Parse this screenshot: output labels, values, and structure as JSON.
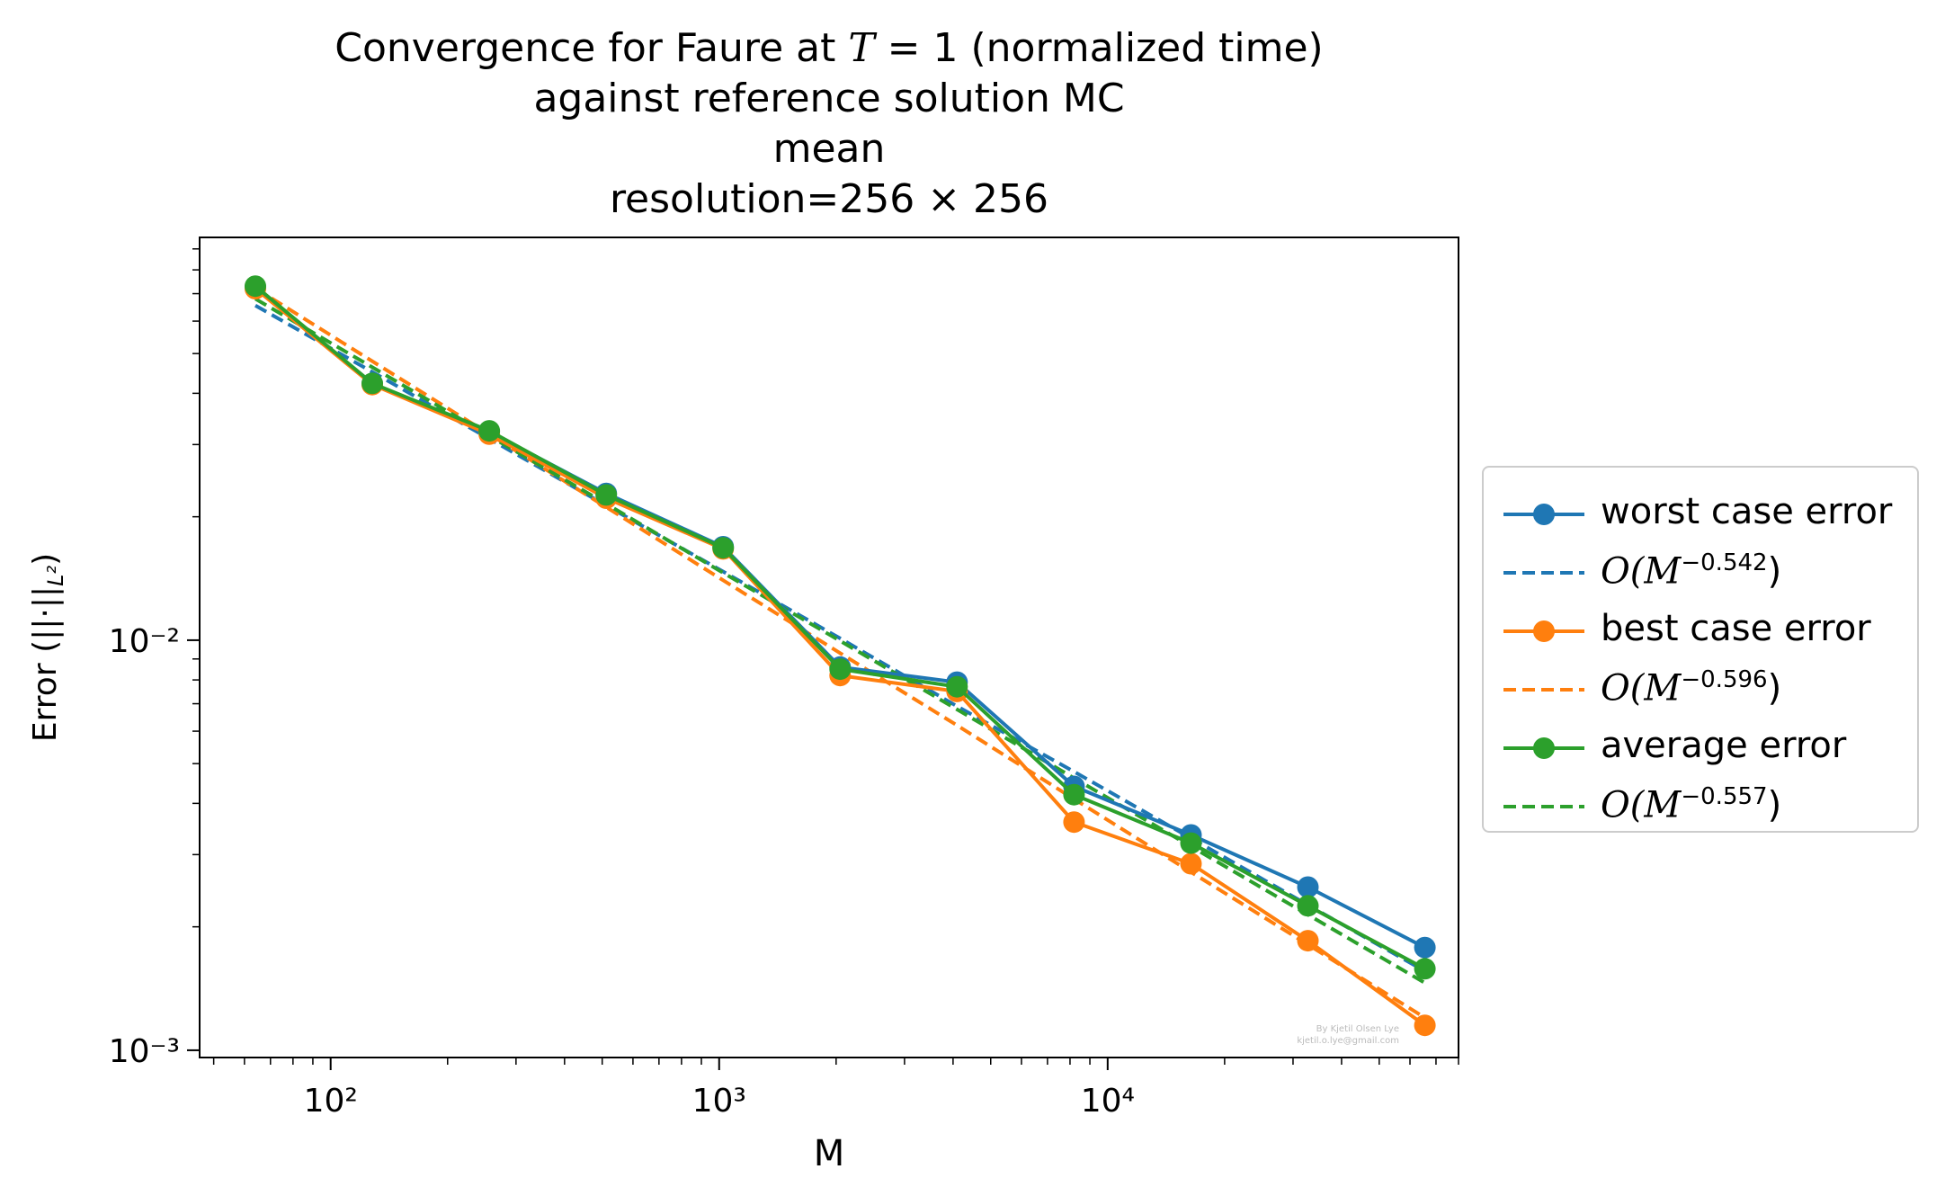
{
  "chart_data": {
    "type": "line",
    "title_lines": [
      "Convergence for Faure at T = 1 (normalized time)",
      "against reference solution MC",
      "mean",
      "resolution=256 × 256"
    ],
    "xlabel": "M",
    "ylabel": "Error (||·||L²)",
    "xscale": "log",
    "yscale": "log",
    "xlim": [
      46,
      80000
    ],
    "ylim": [
      0.00096,
      0.096
    ],
    "xticks": [
      100,
      1000,
      10000
    ],
    "xtick_labels": [
      "10²",
      "10³",
      "10⁴"
    ],
    "yticks": [
      0.001,
      0.01
    ],
    "ytick_labels": [
      "10⁻³",
      "10⁻²"
    ],
    "x": [
      64,
      128,
      256,
      512,
      1024,
      2048,
      4096,
      8192,
      16384,
      32768,
      65536
    ],
    "series": [
      {
        "name": "worst case error",
        "color": "#1f77b4",
        "style": "solid-marker",
        "values": [
          0.0725,
          0.0422,
          0.0322,
          0.0228,
          0.0169,
          0.0086,
          0.0079,
          0.0044,
          0.00335,
          0.0025,
          0.00178
        ]
      },
      {
        "name": "O(M^-0.542)",
        "color": "#1f77b4",
        "style": "dashed",
        "fit_exponent": -0.542,
        "values": [
          0.0655,
          0.0451,
          0.031,
          0.0213,
          0.0147,
          0.0101,
          0.0069,
          0.00478,
          0.00329,
          0.00226,
          0.00156
        ]
      },
      {
        "name": "best case error",
        "color": "#ff7f0e",
        "style": "solid-marker",
        "values": [
          0.072,
          0.042,
          0.0318,
          0.0222,
          0.0167,
          0.0082,
          0.0075,
          0.0036,
          0.00285,
          0.00185,
          0.00115
        ]
      },
      {
        "name": "O(M^-0.596)",
        "color": "#ff7f0e",
        "style": "dashed",
        "fit_exponent": -0.596,
        "values": [
          0.0722,
          0.0479,
          0.0318,
          0.0211,
          0.014,
          0.0093,
          0.0062,
          0.0041,
          0.00272,
          0.00181,
          0.0012
        ]
      },
      {
        "name": "average error",
        "color": "#2ca02c",
        "style": "solid-marker",
        "values": [
          0.073,
          0.0423,
          0.0324,
          0.0226,
          0.0168,
          0.0085,
          0.0077,
          0.0042,
          0.0032,
          0.00225,
          0.00158
        ]
      },
      {
        "name": "O(M^-0.557)",
        "color": "#2ca02c",
        "style": "dashed",
        "fit_exponent": -0.557,
        "values": [
          0.068,
          0.0463,
          0.0315,
          0.0215,
          0.0146,
          0.00996,
          0.00678,
          0.00461,
          0.00314,
          0.00214,
          0.00146
        ]
      }
    ],
    "legend_placement": "outside-right",
    "grid": false
  },
  "legend": {
    "items": [
      {
        "text": "worst case error",
        "color": "#1f77b4",
        "kind": "marker"
      },
      {
        "text": "O(M",
        "exp": "−0.542",
        "tail": ")",
        "color": "#1f77b4",
        "kind": "dashed"
      },
      {
        "text": "best case error",
        "color": "#ff7f0e",
        "kind": "marker"
      },
      {
        "text": "O(M",
        "exp": "−0.596",
        "tail": ")",
        "color": "#ff7f0e",
        "kind": "dashed"
      },
      {
        "text": "average error",
        "color": "#2ca02c",
        "kind": "marker"
      },
      {
        "text": "O(M",
        "exp": "−0.557",
        "tail": ")",
        "color": "#2ca02c",
        "kind": "dashed"
      }
    ]
  },
  "watermark": {
    "line1": "By Kjetil Olsen Lye",
    "line2": "kjetil.o.lye@gmail.com"
  }
}
